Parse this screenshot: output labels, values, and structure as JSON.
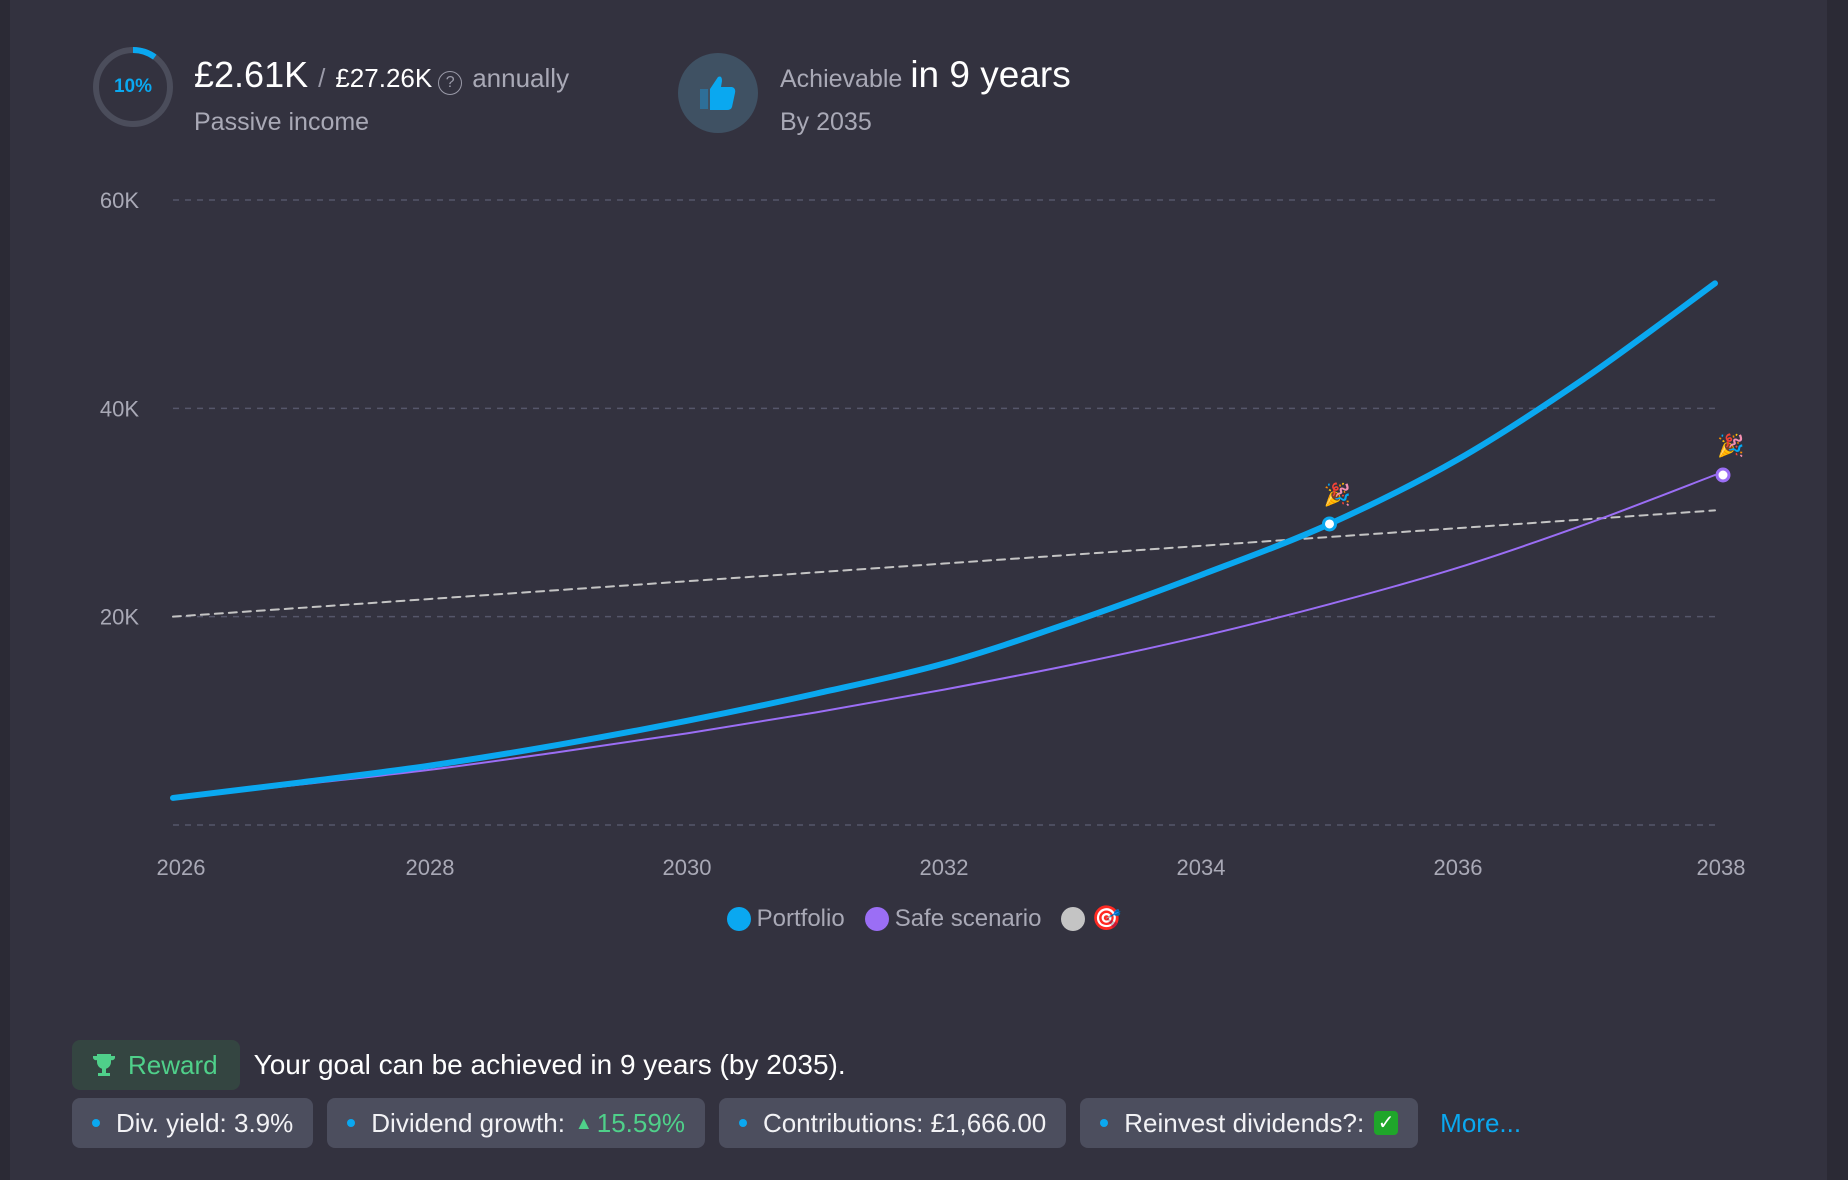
{
  "header": {
    "progress_percent": 10,
    "progress_label": "10%",
    "current_income": "£2.61K",
    "separator": "/",
    "goal_income": "£27.26K",
    "help_icon": "?",
    "period": "annually",
    "income_label": "Passive income",
    "achievable_label": "Achievable",
    "achievable_time": "in 9 years",
    "achievable_by": "By 2035"
  },
  "chart_data": {
    "type": "line",
    "x": [
      2026,
      2027,
      2028,
      2029,
      2030,
      2031,
      2032,
      2033,
      2034,
      2035,
      2036,
      2037,
      2038
    ],
    "series": [
      {
        "name": "Portfolio",
        "color": "#0aa8f0",
        "values": [
          2.6,
          4.1,
          5.7,
          7.7,
          10,
          12.6,
          15.5,
          19.5,
          24,
          28.9,
          35.1,
          43,
          52
        ],
        "marker_x": 2035,
        "marker_emoji": "🎉"
      },
      {
        "name": "Safe scenario",
        "color": "#9b6ef5",
        "values": [
          2.5,
          3.9,
          5.3,
          7,
          8.8,
          10.8,
          13,
          15.4,
          18.1,
          21.2,
          24.7,
          28.9,
          33.6
        ],
        "marker_x": 2038,
        "marker_emoji": "🎉"
      },
      {
        "name": "🎯",
        "color": "#c4c4c4",
        "values": [
          20,
          20.85,
          21.7,
          22.55,
          23.4,
          24.25,
          25.1,
          25.95,
          26.8,
          27.65,
          28.5,
          29.35,
          30.2
        ],
        "dashed": true
      }
    ],
    "ylim": [
      0,
      60
    ],
    "yticks": [
      {
        "v": 0,
        "label": ""
      },
      {
        "v": 20,
        "label": "20K"
      },
      {
        "v": 40,
        "label": "40K"
      },
      {
        "v": 60,
        "label": "60K"
      }
    ],
    "xticks": [
      "2026",
      "2028",
      "2030",
      "2032",
      "2034",
      "2036",
      "2038"
    ],
    "grid": true,
    "legend": "bottom-center"
  },
  "reward": {
    "label": "Reward",
    "text": "Your goal can be achieved in 9 years (by 2035)."
  },
  "chips": {
    "yield": "Div. yield: 3.9%",
    "growth_label": "Dividend growth:",
    "growth_value": "15.59%",
    "contributions": "Contributions: £1,666.00",
    "reinvest": "Reinvest dividends?:",
    "reinvest_check": "✓",
    "more": "More..."
  }
}
